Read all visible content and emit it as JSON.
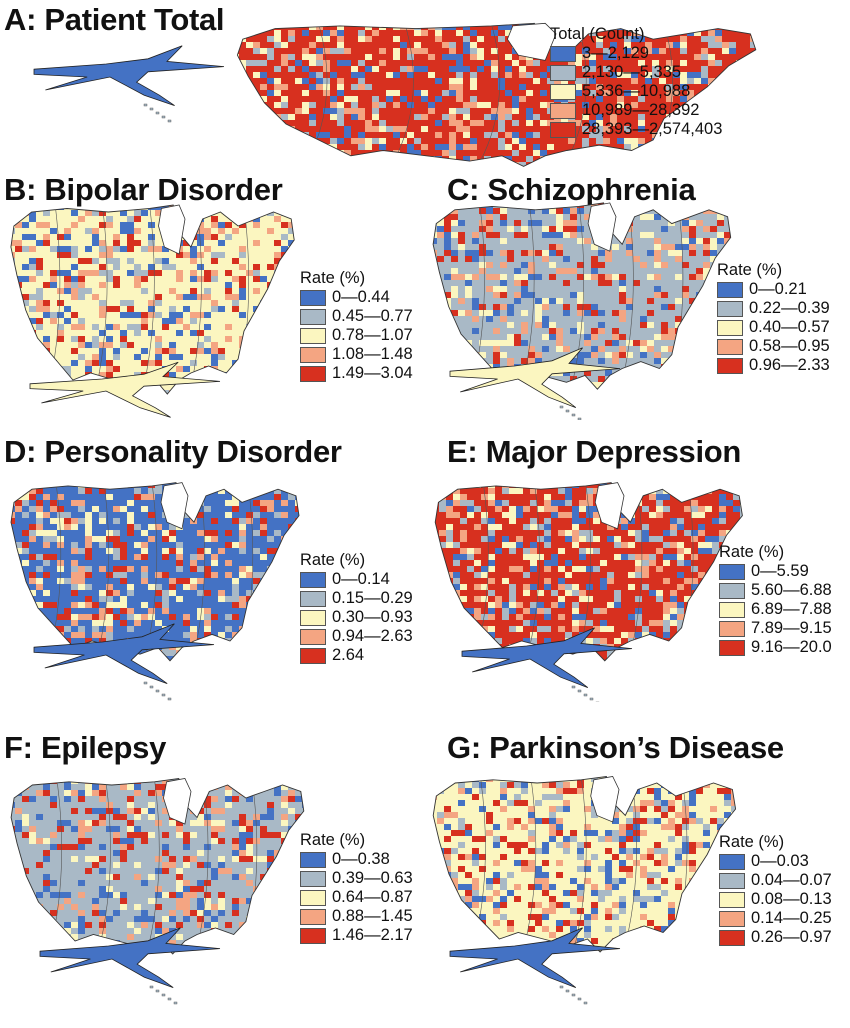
{
  "colors": [
    "#4472c4",
    "#a9b9c6",
    "#fbf6c0",
    "#f4a582",
    "#d7301f"
  ],
  "panels": [
    {
      "id": "a",
      "title": "A: Patient Total",
      "legend_title": "Total (Count)",
      "classes": [
        "3—2,129",
        "2,130—5,335",
        "5,336—10,988",
        "10,989—28,392",
        "28,393—2,574,403"
      ],
      "dominant_class": 4
    },
    {
      "id": "b",
      "title": "B: Bipolar Disorder",
      "legend_title": "Rate (%)",
      "classes": [
        "0—0.44",
        "0.45—0.77",
        "0.78—1.07",
        "1.08—1.48",
        "1.49—3.04"
      ],
      "dominant_class": 2
    },
    {
      "id": "c",
      "title": "C: Schizophrenia",
      "legend_title": "Rate (%)",
      "classes": [
        "0—0.21",
        "0.22—0.39",
        "0.40—0.57",
        "0.58—0.95",
        "0.96—2.33"
      ],
      "dominant_class": 1
    },
    {
      "id": "d",
      "title": "D: Personality Disorder",
      "legend_title": "Rate (%)",
      "classes": [
        "0—0.14",
        "0.15—0.29",
        "0.30—0.93",
        "0.94—2.63",
        "2.64"
      ],
      "dominant_class": 0
    },
    {
      "id": "e",
      "title": "E: Major Depression",
      "legend_title": "Rate (%)",
      "classes": [
        "0—5.59",
        "5.60—6.88",
        "6.89—7.88",
        "7.89—9.15",
        "9.16—20.0"
      ],
      "dominant_class": 4
    },
    {
      "id": "f",
      "title": "F: Epilepsy",
      "legend_title": "Rate (%)",
      "classes": [
        "0—0.38",
        "0.39—0.63",
        "0.64—0.87",
        "0.88—1.45",
        "1.46—2.17"
      ],
      "dominant_class": 1
    },
    {
      "id": "g",
      "title": "G: Parkinson’s Disease",
      "legend_title": "Rate (%)",
      "classes": [
        "0—0.03",
        "0.04—0.07",
        "0.08—0.13",
        "0.14—0.25",
        "0.26—0.97"
      ],
      "dominant_class": 2
    }
  ]
}
